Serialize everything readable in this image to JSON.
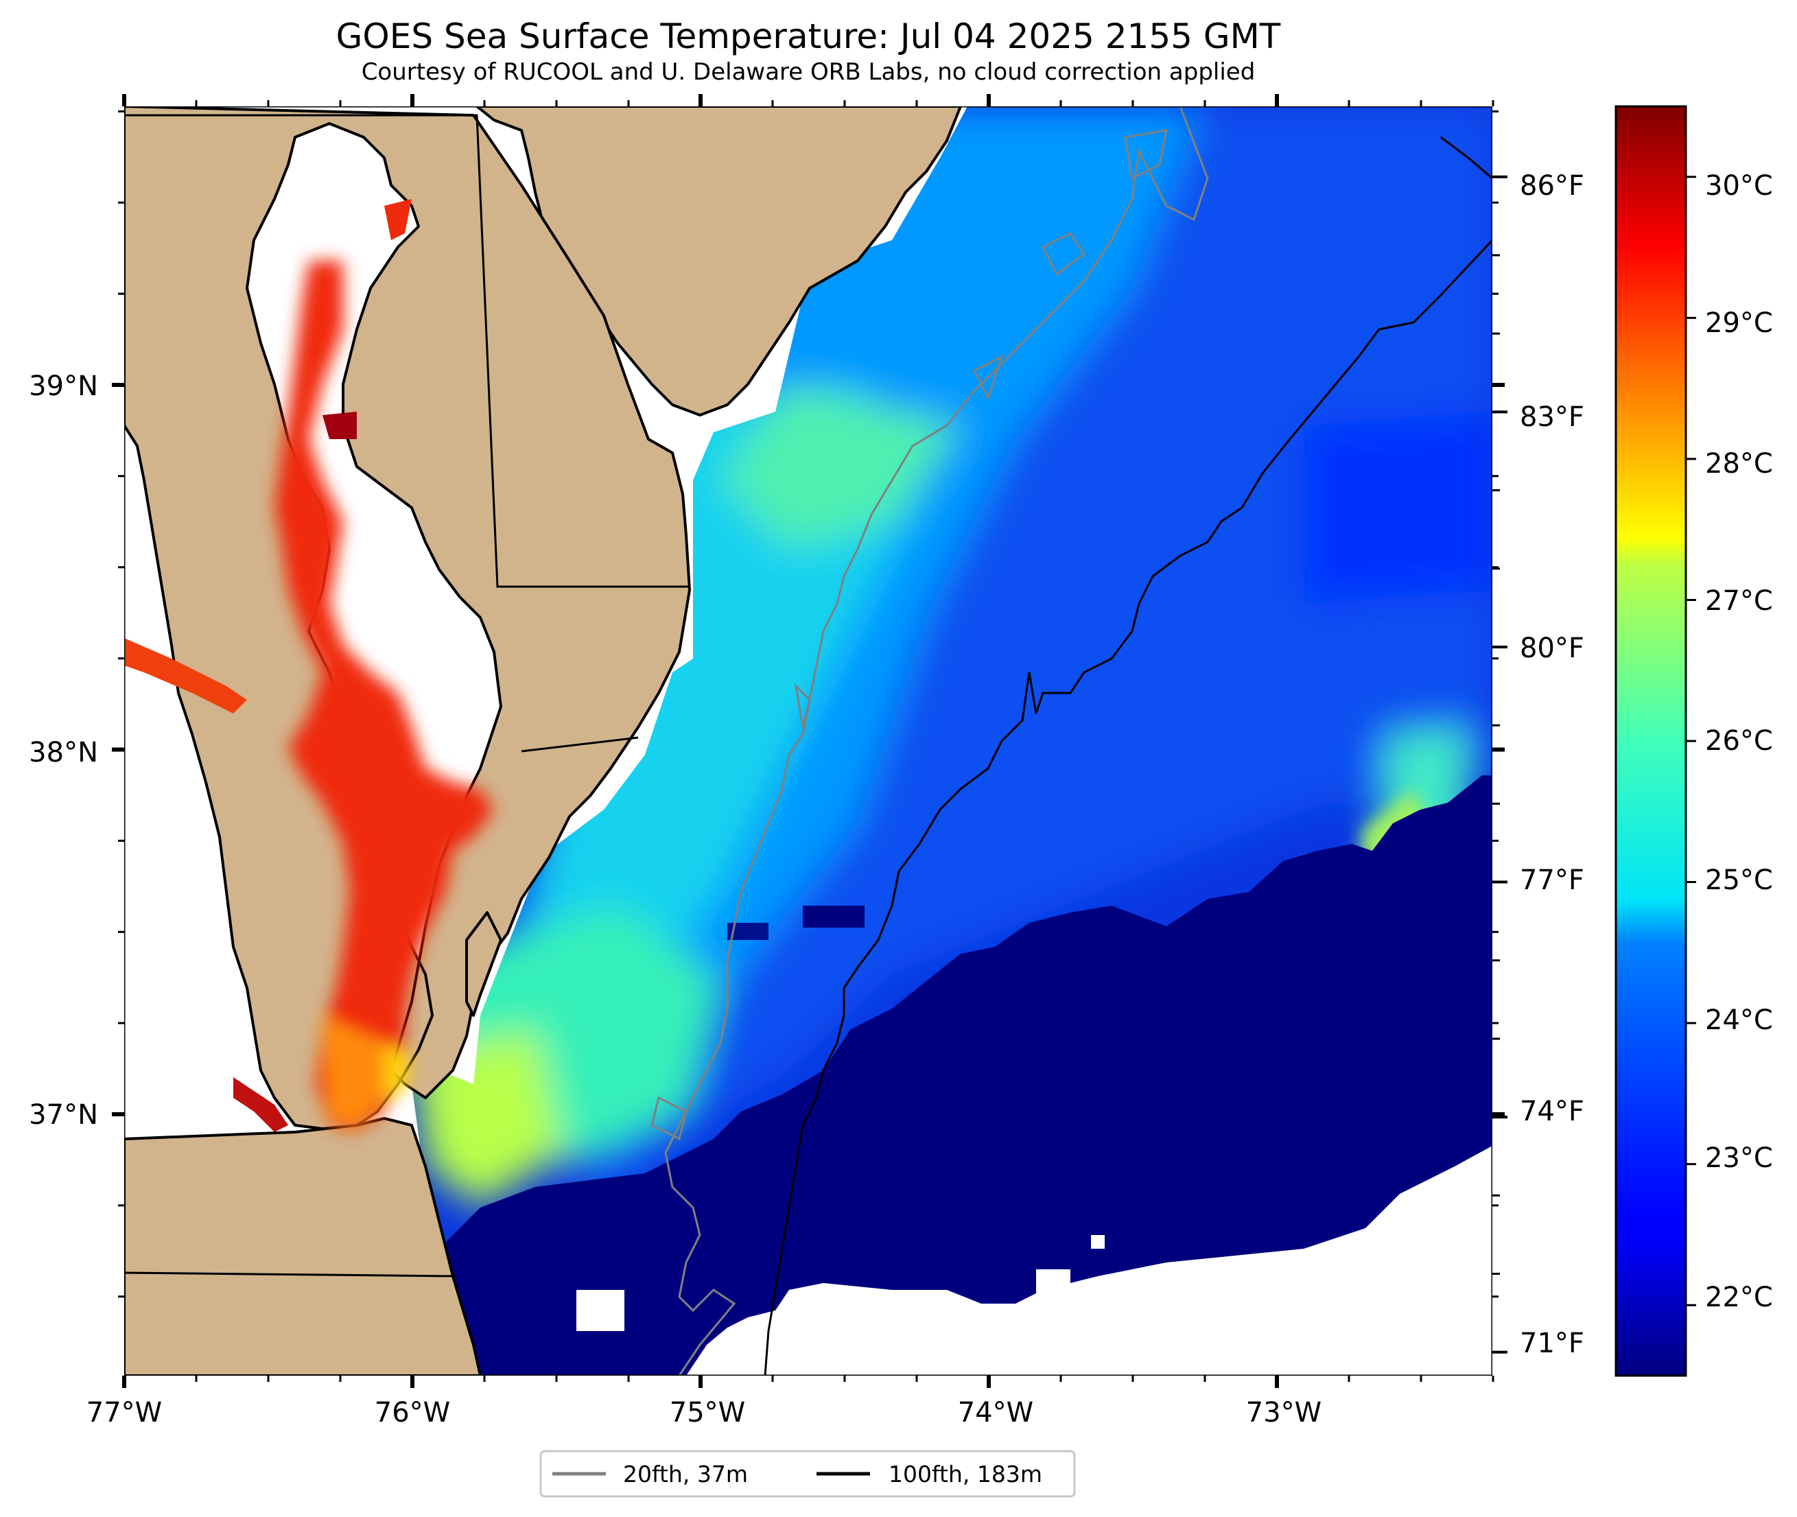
{
  "title": "GOES Sea Surface Temperature: Jul 04 2025 2155 GMT",
  "subtitle": "Courtesy of RUCOOL and U. Delaware ORB Labs, no cloud correction applied",
  "map": {
    "extent": {
      "lon": [
        -77.0,
        -72.25
      ],
      "lat": [
        36.3,
        39.75
      ]
    },
    "x_ticks": [
      "77°W",
      "76°W",
      "75°W",
      "74°W",
      "73°W"
    ],
    "y_ticks": [
      "39°N",
      "38°N",
      "37°N"
    ],
    "land_color": "#d2b48c",
    "cloud_color": "#ffffff"
  },
  "colorbar": {
    "colormap": "jet",
    "range_c": [
      21.5,
      30.5
    ],
    "celsius_ticks": [
      "30°C",
      "29°C",
      "28°C",
      "27°C",
      "26°C",
      "25°C",
      "24°C",
      "23°C",
      "22°C"
    ],
    "fahrenheit_ticks": [
      "86°F",
      "83°F",
      "80°F",
      "77°F",
      "74°F",
      "71°F"
    ]
  },
  "legend": {
    "items": [
      {
        "label": "20fth, 37m",
        "color": "#808080"
      },
      {
        "label": "100fth, 183m",
        "color": "#000000"
      }
    ]
  }
}
